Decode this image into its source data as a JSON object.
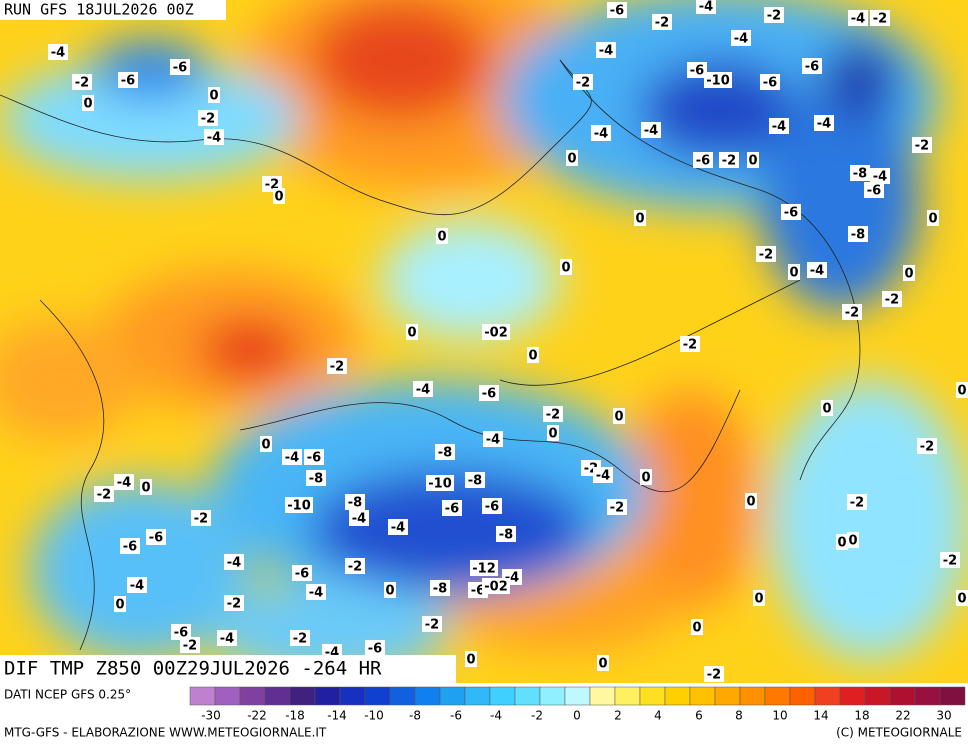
{
  "header": {
    "run": "RUN GFS 18JUL2026 00Z"
  },
  "map": {
    "title": "DIF TMP Z850 00Z29JUL2026 -264 HR",
    "labels": [
      "-6",
      "-2",
      "-4",
      "-2",
      "-4",
      "-2",
      "-4",
      "-4",
      "-4",
      "-6",
      "-2",
      "-6",
      "-2",
      "-6",
      "-10",
      "-6",
      "-6",
      "0",
      "0",
      "-2",
      "-4",
      "-4",
      "-4",
      "-4",
      "-4",
      "-2",
      "0",
      "-6",
      "-2",
      "0",
      "-2",
      "0",
      "-8",
      "-4",
      "-6",
      "-6",
      "0",
      "0",
      "-8",
      "0",
      "-2",
      "0",
      "0",
      "-4",
      "0",
      "-2",
      "-2",
      "0",
      "-02",
      "0",
      "-2",
      "-2",
      "-4",
      "-6",
      "0",
      "0",
      "-2",
      "0",
      "0",
      "-4",
      "-2",
      "0",
      "-4",
      "-6",
      "-8",
      "-8",
      "-2",
      "-4",
      "0",
      "-4",
      "0",
      "-2",
      "-10",
      "-8",
      "-10",
      "-8",
      "-6",
      "-6",
      "0",
      "-2",
      "-2",
      "-4",
      "-2",
      "-4",
      "-8",
      "-6",
      "-6",
      "0",
      "0",
      "-2",
      "-4",
      "-2",
      "-12",
      "-4",
      "-6",
      "-4",
      "-8",
      "-6",
      "-02",
      "-4",
      "0",
      "0",
      "0",
      "-2",
      "0",
      "-2",
      "0",
      "-6",
      "-2",
      "-4",
      "-2",
      "-6",
      "0",
      "0",
      "-2",
      "-4"
    ]
  },
  "legend": {
    "source": "DATI NCEP GFS 0.25°",
    "ticks": [
      "-30",
      "-22",
      "-18",
      "-14",
      "-10",
      "-8",
      "-6",
      "-4",
      "-2",
      "0",
      "2",
      "4",
      "6",
      "8",
      "10",
      "14",
      "18",
      "22",
      "30"
    ]
  },
  "footer": {
    "left": "MTG-GFS - ELABORAZIONE WWW.METEOGIORNALE.IT",
    "right": "(C) METEOGIORNALE"
  }
}
